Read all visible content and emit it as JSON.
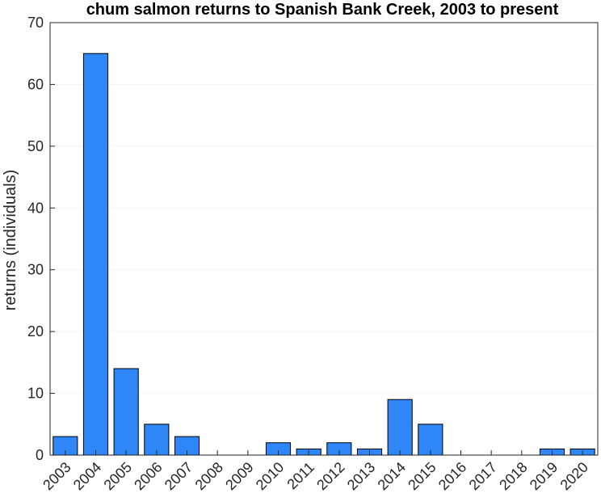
{
  "chart_data": {
    "type": "bar",
    "title": "chum salmon returns to Spanish Bank Creek, 2003 to present",
    "xlabel": "",
    "ylabel": "returns (individuals)",
    "categories": [
      "2003",
      "2004",
      "2005",
      "2006",
      "2007",
      "2008",
      "2009",
      "2010",
      "2011",
      "2012",
      "2013",
      "2014",
      "2015",
      "2016",
      "2017",
      "2018",
      "2019",
      "2020"
    ],
    "values": [
      3,
      65,
      14,
      5,
      3,
      0,
      0,
      2,
      1,
      2,
      1,
      9,
      5,
      0,
      0,
      0,
      1,
      1
    ],
    "ylim": [
      0,
      70
    ],
    "yticks": [
      0,
      10,
      20,
      30,
      40,
      50,
      60,
      70
    ],
    "grid": true,
    "legend": "none",
    "bar_color": "#2e86f7"
  }
}
